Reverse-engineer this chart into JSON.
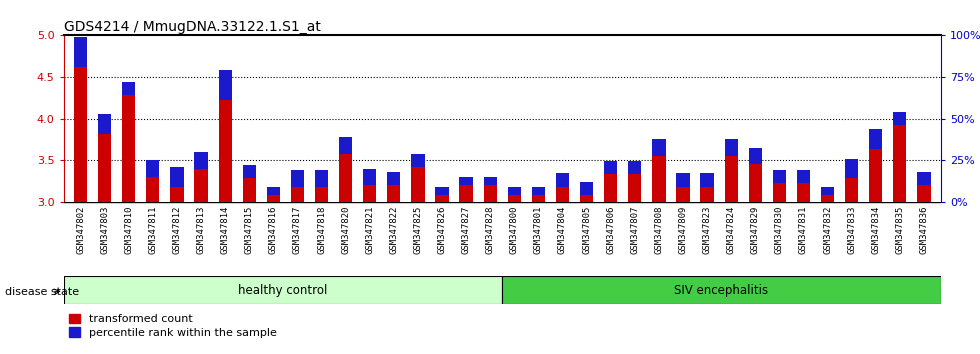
{
  "title": "GDS4214 / MmugDNA.33122.1.S1_at",
  "samples": [
    "GSM347802",
    "GSM347803",
    "GSM347810",
    "GSM347811",
    "GSM347812",
    "GSM347813",
    "GSM347814",
    "GSM347815",
    "GSM347816",
    "GSM347817",
    "GSM347818",
    "GSM347820",
    "GSM347821",
    "GSM347822",
    "GSM347825",
    "GSM347826",
    "GSM347827",
    "GSM347828",
    "GSM347800",
    "GSM347801",
    "GSM347804",
    "GSM347805",
    "GSM347806",
    "GSM347807",
    "GSM347808",
    "GSM347809",
    "GSM347823",
    "GSM347824",
    "GSM347829",
    "GSM347830",
    "GSM347831",
    "GSM347832",
    "GSM347833",
    "GSM347834",
    "GSM347835",
    "GSM347836"
  ],
  "red_values": [
    4.62,
    3.82,
    4.28,
    3.3,
    3.18,
    3.4,
    4.22,
    3.28,
    3.08,
    3.18,
    3.18,
    3.58,
    3.2,
    3.2,
    3.42,
    3.08,
    3.2,
    3.2,
    3.08,
    3.08,
    3.18,
    3.08,
    3.33,
    3.33,
    3.55,
    3.18,
    3.18,
    3.55,
    3.45,
    3.22,
    3.22,
    3.08,
    3.28,
    3.63,
    3.92,
    3.2
  ],
  "blue_pct": [
    18,
    12,
    8,
    10,
    12,
    10,
    18,
    8,
    5,
    10,
    10,
    10,
    10,
    8,
    8,
    5,
    5,
    5,
    5,
    5,
    8,
    8,
    8,
    8,
    10,
    8,
    8,
    10,
    10,
    8,
    8,
    5,
    12,
    12,
    8,
    8
  ],
  "ylim_left": [
    3.0,
    5.0
  ],
  "ylim_right": [
    0,
    100
  ],
  "yticks_left": [
    3.0,
    3.5,
    4.0,
    4.5,
    5.0
  ],
  "yticks_right": [
    0,
    25,
    50,
    75,
    100
  ],
  "ytick_labels_right": [
    "0%",
    "25%",
    "50%",
    "75%",
    "100%"
  ],
  "hlines": [
    3.5,
    4.0,
    4.5
  ],
  "bar_color_red": "#cc0000",
  "bar_color_blue": "#1a1acc",
  "bar_width": 0.55,
  "healthy_count": 18,
  "healthy_label": "healthy control",
  "siv_label": "SIV encephalitis",
  "disease_label": "disease state",
  "legend_red": "transformed count",
  "legend_blue": "percentile rank within the sample",
  "bg_plot": "#ffffff",
  "bg_label": "#d0d0d0",
  "bg_healthy": "#ccffcc",
  "bg_siv": "#44cc44",
  "title_fontsize": 10,
  "tick_fontsize": 6.5,
  "axis_color_left": "#cc0000",
  "axis_color_right": "#0000cc"
}
